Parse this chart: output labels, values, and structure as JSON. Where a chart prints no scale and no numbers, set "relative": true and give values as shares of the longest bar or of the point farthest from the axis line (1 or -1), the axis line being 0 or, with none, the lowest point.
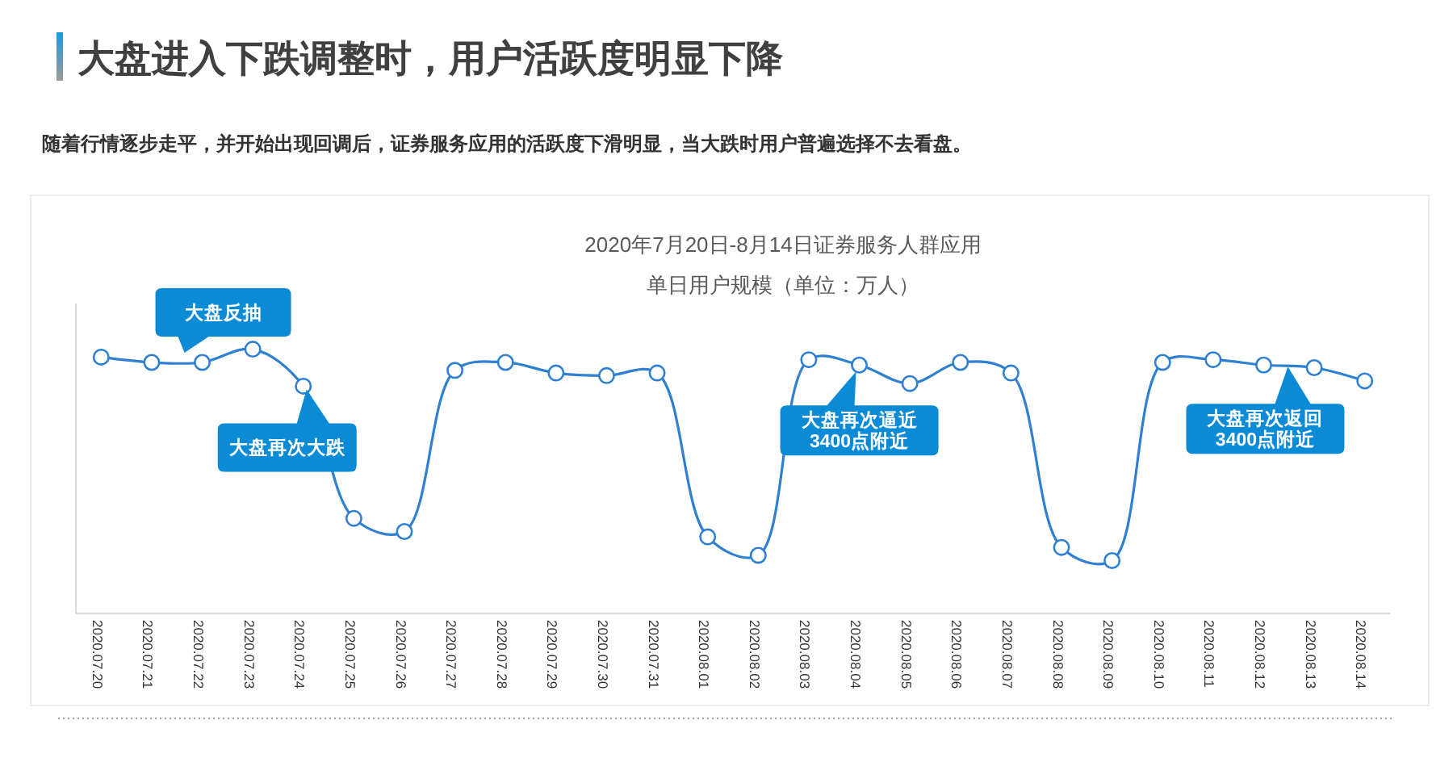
{
  "chart_data": {
    "type": "line",
    "title": "大盘进入下跌调整时，用户活跃度明显下降",
    "subtitle": "随着行情逐步走平，并开始出现回调后，证券服务应用的活跃度下滑明显，当大跌时用户普遍选择不去看盘。",
    "ylabel": "单日用户规模（单位：万人）",
    "categories": [
      "2020.07.20",
      "2020.07.21",
      "2020.07.22",
      "2020.07.23",
      "2020.07.24",
      "2020.07.25",
      "2020.07.26",
      "2020.07.27",
      "2020.07.28",
      "2020.07.29",
      "2020.07.30",
      "2020.07.31",
      "2020.08.01",
      "2020.08.02",
      "2020.08.03",
      "2020.08.04",
      "2020.08.05",
      "2020.08.06",
      "2020.08.07",
      "2020.08.08",
      "2020.08.09",
      "2020.08.10",
      "2020.08.11",
      "2020.08.12",
      "2020.08.13",
      "2020.08.14"
    ],
    "series": [
      {
        "color": "#2f80d1",
        "values": [
          0.97,
          0.95,
          0.95,
          1,
          0.86,
          0.36,
          0.31,
          0.92,
          0.95,
          0.91,
          0.9,
          0.91,
          0.29,
          0.22,
          0.96,
          0.94,
          0.87,
          0.95,
          0.91,
          0.25,
          0.2,
          0.95,
          0.96,
          0.94,
          0.93,
          0.88
        ]
      }
    ],
    "relative": true,
    "marker": "circle",
    "line_style": "solid",
    "annotations": [
      "2020年7月20日-8月14日证券服务人群应用",
      {
        "text": "大盘反抽",
        "x": "2020.07.22",
        "y": 0.95
      },
      {
        "text": "大盘再次大跌",
        "x": "2020.07.24",
        "y": 0.86
      },
      {
        "text": "大盘再次逼近\n3400点附近",
        "x": "2020.08.04",
        "y": 0.94
      },
      {
        "text": "大盘再次返回\n3400点附近",
        "x": "2020.08.12",
        "y": 0.94
      }
    ]
  }
}
